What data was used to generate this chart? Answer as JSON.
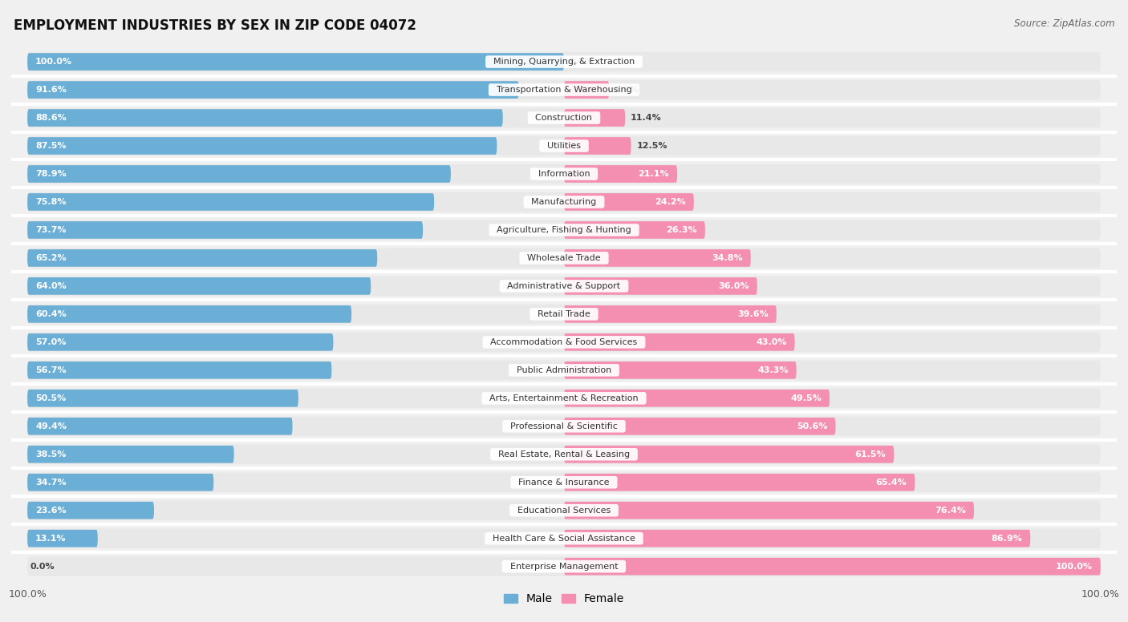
{
  "title": "EMPLOYMENT INDUSTRIES BY SEX IN ZIP CODE 04072",
  "source": "Source: ZipAtlas.com",
  "categories": [
    "Mining, Quarrying, & Extraction",
    "Transportation & Warehousing",
    "Construction",
    "Utilities",
    "Information",
    "Manufacturing",
    "Agriculture, Fishing & Hunting",
    "Wholesale Trade",
    "Administrative & Support",
    "Retail Trade",
    "Accommodation & Food Services",
    "Public Administration",
    "Arts, Entertainment & Recreation",
    "Professional & Scientific",
    "Real Estate, Rental & Leasing",
    "Finance & Insurance",
    "Educational Services",
    "Health Care & Social Assistance",
    "Enterprise Management"
  ],
  "male": [
    100.0,
    91.6,
    88.6,
    87.5,
    78.9,
    75.8,
    73.7,
    65.2,
    64.0,
    60.4,
    57.0,
    56.7,
    50.5,
    49.4,
    38.5,
    34.7,
    23.6,
    13.1,
    0.0
  ],
  "female": [
    0.0,
    8.4,
    11.4,
    12.5,
    21.1,
    24.2,
    26.3,
    34.8,
    36.0,
    39.6,
    43.0,
    43.3,
    49.5,
    50.6,
    61.5,
    65.4,
    76.4,
    86.9,
    100.0
  ],
  "male_color": "#6baed6",
  "female_color": "#f48fb1",
  "bg_color": "#f0f0f0",
  "bar_bg_color": "#e0e0e0",
  "row_bg_color": "#e8e8e8",
  "separator_color": "#ffffff",
  "title_fontsize": 12,
  "source_fontsize": 8.5,
  "label_fontsize": 8,
  "pct_fontsize": 8,
  "bar_height": 0.62,
  "figsize": [
    14.06,
    7.76
  ]
}
